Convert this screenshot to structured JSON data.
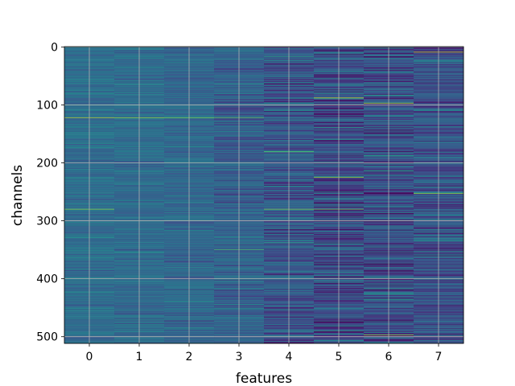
{
  "chart_data": {
    "type": "heatmap",
    "title": "",
    "xlabel": "features",
    "ylabel": "channels",
    "x_ticks": [
      "0",
      "1",
      "2",
      "3",
      "4",
      "5",
      "6",
      "7"
    ],
    "y_ticks": [
      "0",
      "100",
      "200",
      "300",
      "400",
      "500"
    ],
    "y_tick_values": [
      0,
      100,
      200,
      300,
      400,
      500
    ],
    "n_rows": 512,
    "n_cols": 8,
    "xlim": [
      -0.5,
      7.5
    ],
    "ylim": [
      511.5,
      -0.5
    ],
    "y_inverted": true,
    "grid": true,
    "colormap": "viridis",
    "colors": {
      "grid": "#b0b0b0",
      "background": "#ffffff"
    },
    "column_profile": [
      {
        "feature": 0,
        "mean": 0.36,
        "spread": 0.05
      },
      {
        "feature": 1,
        "mean": 0.35,
        "spread": 0.05
      },
      {
        "feature": 2,
        "mean": 0.34,
        "spread": 0.06
      },
      {
        "feature": 3,
        "mean": 0.31,
        "spread": 0.07
      },
      {
        "feature": 4,
        "mean": 0.28,
        "spread": 0.1
      },
      {
        "feature": 5,
        "mean": 0.24,
        "spread": 0.12
      },
      {
        "feature": 6,
        "mean": 0.25,
        "spread": 0.11
      },
      {
        "feature": 7,
        "mean": 0.27,
        "spread": 0.1
      }
    ],
    "highlights": [
      {
        "feature": 0,
        "channel": 122,
        "value": 0.9
      },
      {
        "feature": 1,
        "channel": 122,
        "value": 0.85
      },
      {
        "feature": 2,
        "channel": 122,
        "value": 0.8
      },
      {
        "feature": 3,
        "channel": 122,
        "value": 0.75
      },
      {
        "feature": 0,
        "channel": 280,
        "value": 0.82
      },
      {
        "feature": 4,
        "channel": 280,
        "value": 0.8
      },
      {
        "feature": 5,
        "channel": 280,
        "value": 0.78
      },
      {
        "feature": 5,
        "channel": 88,
        "value": 0.92
      },
      {
        "feature": 5,
        "channel": 225,
        "value": 0.85
      },
      {
        "feature": 6,
        "channel": 97,
        "value": 0.9
      },
      {
        "feature": 6,
        "channel": 497,
        "value": 0.85
      },
      {
        "feature": 7,
        "channel": 9,
        "value": 0.92
      },
      {
        "feature": 7,
        "channel": 253,
        "value": 0.85
      },
      {
        "feature": 4,
        "channel": 181,
        "value": 0.75
      },
      {
        "feature": 3,
        "channel": 350,
        "value": 0.7
      }
    ]
  }
}
